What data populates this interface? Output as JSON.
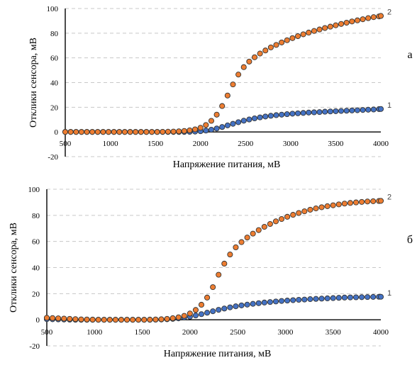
{
  "chart_data": [
    {
      "type": "scatter",
      "panel_label": "а",
      "xlabel": "Напряжение питания, мВ",
      "ylabel": "Отклики сенсора, мВ",
      "xlim": [
        500,
        4000
      ],
      "ylim": [
        -20,
        100
      ],
      "x_ticks": [
        "500",
        "1000",
        "1500",
        "2000",
        "2500",
        "3000",
        "3500",
        "4000"
      ],
      "y_ticks": [
        "-20",
        "0",
        "20",
        "40",
        "60",
        "80",
        "100"
      ],
      "grid": "horizontal dashed",
      "x": [
        500,
        560,
        620,
        680,
        740,
        800,
        860,
        920,
        980,
        1040,
        1100,
        1160,
        1220,
        1280,
        1340,
        1400,
        1460,
        1520,
        1580,
        1640,
        1700,
        1760,
        1820,
        1880,
        1940,
        2000,
        2060,
        2120,
        2180,
        2240,
        2300,
        2360,
        2420,
        2480,
        2540,
        2600,
        2660,
        2720,
        2780,
        2840,
        2900,
        2960,
        3020,
        3080,
        3140,
        3200,
        3260,
        3320,
        3380,
        3440,
        3500,
        3560,
        3620,
        3680,
        3740,
        3800,
        3860,
        3920,
        3980,
        4000
      ],
      "series": [
        {
          "name": "1",
          "color": "#4472c4",
          "values": [
            0,
            0,
            0,
            0,
            0,
            0,
            0,
            0,
            0,
            0,
            0,
            0,
            0,
            0,
            0,
            0,
            0,
            0,
            0,
            0,
            0,
            0,
            0,
            0.1,
            0.3,
            0.6,
            1.1,
            1.8,
            2.8,
            4.0,
            5.3,
            6.6,
            7.9,
            9.1,
            10.1,
            11.0,
            11.8,
            12.5,
            13.1,
            13.6,
            14.0,
            14.4,
            14.8,
            15.1,
            15.4,
            15.7,
            15.9,
            16.1,
            16.4,
            16.6,
            16.8,
            17.0,
            17.2,
            17.4,
            17.6,
            17.8,
            18.0,
            18.2,
            18.5,
            18.6
          ]
        },
        {
          "name": "2",
          "color": "#ed7d31",
          "values": [
            0,
            0,
            0,
            0,
            0,
            0,
            0,
            0,
            0,
            0,
            0,
            0,
            0,
            0,
            0,
            0,
            0,
            0,
            0.1,
            0.2,
            0.3,
            0.5,
            0.8,
            1.3,
            2.1,
            3.4,
            5.6,
            9.0,
            14.0,
            21.0,
            29.5,
            38.5,
            46.5,
            52.5,
            57.0,
            60.5,
            63.5,
            66.0,
            68.5,
            70.5,
            72.5,
            74.3,
            76.0,
            77.6,
            79.1,
            80.5,
            81.8,
            83.0,
            84.2,
            85.3,
            86.4,
            87.5,
            88.5,
            89.5,
            90.4,
            91.3,
            92.2,
            93.0,
            93.6,
            94.0
          ]
        }
      ]
    },
    {
      "type": "scatter",
      "panel_label": "б",
      "xlabel": "Напряжение питания, мВ",
      "ylabel": "Отклики сенсора, мВ",
      "xlim": [
        500,
        4000
      ],
      "ylim": [
        -20,
        100
      ],
      "x_ticks": [
        "500",
        "1000",
        "1500",
        "2000",
        "2500",
        "3000",
        "3500",
        "4000"
      ],
      "y_ticks": [
        "-20",
        "0",
        "20",
        "40",
        "60",
        "80",
        "100"
      ],
      "grid": "horizontal dashed",
      "x": [
        500,
        560,
        620,
        680,
        740,
        800,
        860,
        920,
        980,
        1040,
        1100,
        1160,
        1220,
        1280,
        1340,
        1400,
        1460,
        1520,
        1580,
        1640,
        1700,
        1760,
        1820,
        1880,
        1940,
        2000,
        2060,
        2120,
        2180,
        2240,
        2300,
        2360,
        2420,
        2480,
        2540,
        2600,
        2660,
        2720,
        2780,
        2840,
        2900,
        2960,
        3020,
        3080,
        3140,
        3200,
        3260,
        3320,
        3380,
        3440,
        3500,
        3560,
        3620,
        3680,
        3740,
        3800,
        3860,
        3920,
        3980,
        4000
      ],
      "series": [
        {
          "name": "1",
          "color": "#4472c4",
          "values": [
            0.5,
            0.4,
            0.3,
            0.2,
            0.1,
            0,
            0,
            0,
            0,
            0,
            0,
            0,
            0,
            0,
            0,
            0,
            0,
            0,
            0,
            0.1,
            0.2,
            0.4,
            0.7,
            1.1,
            1.7,
            2.4,
            3.3,
            4.3,
            5.4,
            6.5,
            7.6,
            8.6,
            9.5,
            10.3,
            11.0,
            11.6,
            12.2,
            12.7,
            13.2,
            13.6,
            14.0,
            14.4,
            14.7,
            15.0,
            15.3,
            15.5,
            15.8,
            16.0,
            16.2,
            16.4,
            16.6,
            16.8,
            17.0,
            17.1,
            17.2,
            17.3,
            17.4,
            17.5,
            17.6,
            17.6
          ]
        },
        {
          "name": "2",
          "color": "#ed7d31",
          "values": [
            1.5,
            1.3,
            1.1,
            0.9,
            0.7,
            0.5,
            0.3,
            0.2,
            0.1,
            0,
            0,
            0,
            0,
            0,
            0,
            0,
            0,
            0,
            0.1,
            0.2,
            0.4,
            0.7,
            1.2,
            1.9,
            3.0,
            4.8,
            7.5,
            11.5,
            17.0,
            25.0,
            34.5,
            43.0,
            50.0,
            55.5,
            59.5,
            63.0,
            66.0,
            68.7,
            71.2,
            73.4,
            75.4,
            77.2,
            78.9,
            80.4,
            81.8,
            83.1,
            84.3,
            85.3,
            86.2,
            87.0,
            87.7,
            88.4,
            89.0,
            89.5,
            89.9,
            90.3,
            90.6,
            90.8,
            91.0,
            91.1
          ]
        }
      ]
    }
  ]
}
